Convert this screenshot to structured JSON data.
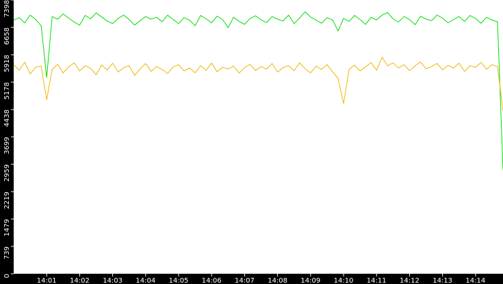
{
  "chart_data": {
    "type": "line",
    "categories": [
      null,
      null,
      null,
      null,
      null,
      null,
      "14:01",
      null,
      null,
      null,
      null,
      null,
      "14:02",
      null,
      null,
      null,
      null,
      null,
      "14:03",
      null,
      null,
      null,
      null,
      null,
      "14:04",
      null,
      null,
      null,
      null,
      null,
      "14:05",
      null,
      null,
      null,
      null,
      null,
      "14:06",
      null,
      null,
      null,
      null,
      null,
      "14:07",
      null,
      null,
      null,
      null,
      null,
      "14:08",
      null,
      null,
      null,
      null,
      null,
      "14:09",
      null,
      null,
      null,
      null,
      null,
      "14:10",
      null,
      null,
      null,
      null,
      null,
      "14:11",
      null,
      null,
      null,
      null,
      null,
      "14:12",
      null,
      null,
      null,
      null,
      null,
      "14:13",
      null,
      null,
      null,
      null,
      null,
      "14:14",
      null,
      null,
      null,
      null,
      null
    ],
    "series": [
      {
        "color": "#00dd00",
        "values": [
          6850,
          6920,
          6780,
          6990,
          6870,
          6700,
          5300,
          6950,
          6880,
          7020,
          6910,
          6800,
          6720,
          6980,
          6890,
          7050,
          6940,
          6830,
          6760,
          6900,
          6990,
          6870,
          6720,
          6840,
          6950,
          6880,
          6930,
          6810,
          6990,
          6870,
          6760,
          6920,
          6850,
          6700,
          6980,
          6890,
          6780,
          6960,
          6870,
          6650,
          6930,
          6820,
          6740,
          6900,
          6970,
          6860,
          6790,
          6950,
          6880,
          6830,
          6990,
          6760,
          6910,
          7080,
          6940,
          6850,
          6770,
          6920,
          6860,
          6560,
          6900,
          6820,
          6980,
          6870,
          6740,
          6930,
          6860,
          6990,
          7060,
          6890,
          6800,
          6950,
          6870,
          6730,
          6960,
          6880,
          6840,
          6990,
          6910,
          6780,
          6870,
          6950,
          6820,
          6980,
          6900,
          6770,
          6930,
          6860,
          6810,
          2800
        ]
      },
      {
        "color": "#f0b400",
        "values": [
          5650,
          5500,
          5720,
          5400,
          5580,
          5610,
          4700,
          5520,
          5660,
          5430,
          5590,
          5700,
          5480,
          5620,
          5550,
          5380,
          5640,
          5510,
          5690,
          5450,
          5570,
          5620,
          5360,
          5540,
          5680,
          5470,
          5600,
          5520,
          5410,
          5590,
          5650,
          5480,
          5560,
          5430,
          5620,
          5500,
          5690,
          5460,
          5580,
          5530,
          5610,
          5420,
          5570,
          5660,
          5490,
          5600,
          5530,
          5680,
          5450,
          5570,
          5620,
          5490,
          5700,
          5540,
          5430,
          5610,
          5520,
          5650,
          5460,
          5280,
          4600,
          5520,
          5640,
          5480,
          5590,
          5710,
          5500,
          5850,
          5620,
          5700,
          5560,
          5650,
          5490,
          5620,
          5720,
          5540,
          5600,
          5680,
          5510,
          5630,
          5560,
          5690,
          5470,
          5620,
          5580,
          5710,
          5530,
          5650,
          5600,
          4400
        ]
      }
    ],
    "ylim": [
      0,
      7398
    ],
    "yticks": [
      0,
      739,
      1479,
      2219,
      2959,
      3699,
      4438,
      5178,
      5918,
      6658,
      7398
    ]
  }
}
